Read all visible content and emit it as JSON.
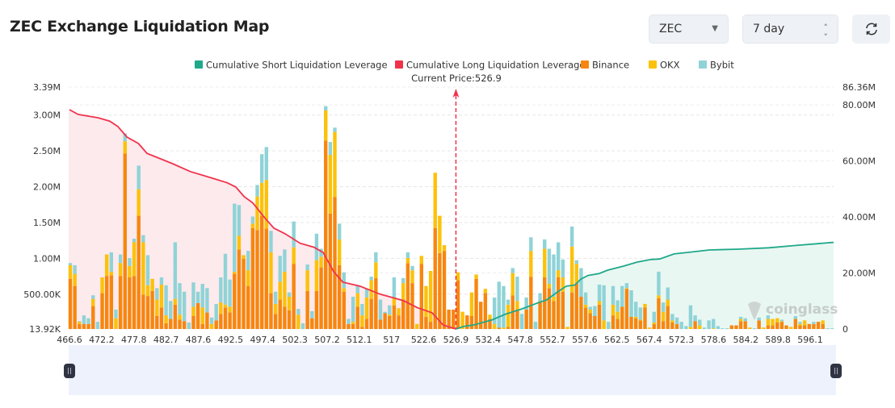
{
  "header": {
    "title": "ZEC Exchange Liquidation Map",
    "coin_select": "ZEC",
    "range_select": "7 day",
    "refresh_icon": "refresh-icon"
  },
  "watermark": "coinglass",
  "colors": {
    "short_line": "#1fa88a",
    "short_fill": "#e7f6f1",
    "long_line": "#f0334b",
    "long_fill": "#fde8eb",
    "binance": "#f7860f",
    "okx": "#fcc10a",
    "bybit": "#8fd3d7",
    "zoom_bg": "#eef2fd",
    "handle": "#2f3342"
  },
  "chart_data": {
    "type": "bar",
    "title": "",
    "legend": {
      "placement": "top",
      "items": [
        {
          "name": "Cumulative Short Liquidation Leverage",
          "color": "#1fa88a"
        },
        {
          "name": "Cumulative Long Liquidation Leverage",
          "color": "#f0334b"
        },
        {
          "name": "Binance",
          "color": "#f7860f"
        },
        {
          "name": "OKX",
          "color": "#fcc10a"
        },
        {
          "name": "Bybit",
          "color": "#8fd3d7"
        }
      ]
    },
    "current_price_label": "Current Price:526.9",
    "current_price": 526.9,
    "x_ticks": [
      "466.6",
      "472.2",
      "477.8",
      "482.7",
      "487.6",
      "492.5",
      "497.4",
      "502.3",
      "507.2",
      "512.1",
      "517",
      "522.6",
      "526.9",
      "532.4",
      "547.8",
      "552.7",
      "557.6",
      "562.5",
      "567.4",
      "572.3",
      "578.6",
      "584.2",
      "589.8",
      "596.1"
    ],
    "y_left": {
      "min": 0.01392,
      "max": 3.39,
      "ticks": [
        [
          0.01392,
          "13.92K"
        ],
        [
          0.5,
          "500.00K"
        ],
        [
          1.0,
          "1.00M"
        ],
        [
          1.5,
          "1.50M"
        ],
        [
          2.0,
          "2.00M"
        ],
        [
          2.5,
          "2.50M"
        ],
        [
          3.0,
          "3.00M"
        ],
        [
          3.39,
          "3.39M"
        ]
      ],
      "unit": "M"
    },
    "y_right": {
      "min": 0,
      "max": 86.36,
      "ticks": [
        [
          0,
          "0"
        ],
        [
          20,
          "20.00M"
        ],
        [
          40,
          "40.00M"
        ],
        [
          60,
          "60.00M"
        ],
        [
          80,
          "80.00M"
        ],
        [
          86.36,
          "86.36M"
        ]
      ],
      "unit": "M"
    },
    "grid": true,
    "stack_order": [
      "Binance",
      "OKX",
      "Bybit"
    ],
    "bars": [
      [
        0.7,
        0.19,
        0.03
      ],
      [
        0.6,
        0.17,
        0.12
      ],
      [
        0.07,
        0.03,
        0.01
      ],
      [
        0.07,
        0,
        0.12
      ],
      [
        0.07,
        0,
        0.08
      ],
      [
        0.32,
        0.1,
        0.05
      ],
      [
        0,
        0,
        0.1
      ],
      [
        0.5,
        0.22,
        0
      ],
      [
        0.74,
        0.3,
        0
      ],
      [
        0.75,
        0.05,
        0.27
      ],
      [
        0,
        0.15,
        0.12
      ],
      [
        0.74,
        0.18,
        0.12
      ],
      [
        2.45,
        0.17,
        0.11
      ],
      [
        0.72,
        0.16,
        0.11
      ],
      [
        0.74,
        0.47,
        0.05
      ],
      [
        1.58,
        0.37,
        0.33
      ],
      [
        0.48,
        0.73,
        0.1
      ],
      [
        0.46,
        0.15,
        0.42
      ],
      [
        0.53,
        0.17,
        0
      ],
      [
        0.18,
        0.23,
        0.16
      ],
      [
        0.3,
        0.32,
        0.1
      ],
      [
        0.08,
        0.11,
        0.42
      ],
      [
        0.14,
        0,
        0.25
      ],
      [
        0.34,
        0.08,
        0.79
      ],
      [
        0.13,
        0.07,
        0.44
      ],
      [
        0.11,
        0,
        0.41
      ],
      [
        0,
        0,
        0.09
      ],
      [
        0.18,
        0.13,
        0.34
      ],
      [
        0.36,
        0,
        0.16
      ],
      [
        0.07,
        0.23,
        0.33
      ],
      [
        0.23,
        0,
        0.34
      ],
      [
        0,
        0.07,
        0.09
      ],
      [
        0.12,
        0,
        0.23
      ],
      [
        0.21,
        0.16,
        0.35
      ],
      [
        0.3,
        0.04,
        0.71
      ],
      [
        0.23,
        0.08,
        0.38
      ],
      [
        0.77,
        0.03,
        0.95
      ],
      [
        1.11,
        0.19,
        0.43
      ],
      [
        0.98,
        0.05,
        0
      ],
      [
        0.6,
        0.22,
        0.27
      ],
      [
        1.41,
        0.06,
        0.1
      ],
      [
        1.38,
        0.47,
        0.16
      ],
      [
        1.58,
        0.46,
        0.4
      ],
      [
        1.4,
        0.68,
        0.46
      ],
      [
        0.5,
        0.57,
        0.3
      ],
      [
        0.21,
        0.14,
        0.17
      ],
      [
        0.41,
        0.25,
        0.36
      ],
      [
        0.31,
        0.49,
        0.31
      ],
      [
        0.26,
        0.19,
        0.06
      ],
      [
        0.91,
        0.23,
        0.36
      ],
      [
        0,
        0.2,
        0.08
      ],
      [
        0,
        0,
        0.08
      ],
      [
        0.53,
        0.29,
        0.08
      ],
      [
        0.15,
        0,
        0.1
      ],
      [
        0.53,
        0.43,
        0.37
      ],
      [
        0.86,
        0.15,
        0.11
      ],
      [
        2.63,
        0.42,
        0.06
      ],
      [
        1.61,
        0.82,
        0.18
      ],
      [
        1.84,
        0.91,
        0.06
      ],
      [
        0.89,
        0.36,
        0.22
      ],
      [
        0.52,
        0.05,
        0.22
      ],
      [
        0.07,
        0,
        0.07
      ],
      [
        0.07,
        0.03,
        0.35
      ],
      [
        0.31,
        0.19,
        0.1
      ],
      [
        0.03,
        0.16,
        0.16
      ],
      [
        0.14,
        0.3,
        0.12
      ],
      [
        0.42,
        0.26,
        0.05
      ],
      [
        0.71,
        0.22,
        0.14
      ],
      [
        0.13,
        0,
        0.28
      ],
      [
        0.22,
        0,
        0.02
      ],
      [
        0.18,
        0.02,
        0.13
      ],
      [
        0.33,
        0.11,
        0.28
      ],
      [
        0.19,
        0.1,
        0
      ],
      [
        0.41,
        0.23,
        0.07
      ],
      [
        0.92,
        0.07,
        0.08
      ],
      [
        0.64,
        0.18,
        0.06
      ],
      [
        0,
        0.07,
        0
      ],
      [
        0.91,
        0.11,
        0
      ],
      [
        0.17,
        0.43,
        0
      ],
      [
        0.1,
        0.71,
        0
      ],
      [
        1.41,
        0.77,
        0
      ],
      [
        1.06,
        0.52,
        0
      ],
      [
        1.09,
        0.08,
        0
      ],
      [
        0.27,
        0,
        0
      ],
      [
        0.27,
        0,
        0
      ],
      [
        0.68,
        0.11,
        0
      ],
      [
        0,
        0.24,
        0
      ],
      [
        0.19,
        0,
        0
      ],
      [
        0.18,
        0.33,
        0
      ],
      [
        0.7,
        0.06,
        0
      ],
      [
        0.38,
        0,
        0
      ],
      [
        0.5,
        0.06,
        0
      ],
      [
        0.14,
        0.06,
        0
      ],
      [
        0,
        0.07,
        0.37
      ],
      [
        0.02,
        0,
        0.64
      ],
      [
        0,
        0.02,
        0.58
      ],
      [
        0.03,
        0.31,
        0.07
      ],
      [
        0.47,
        0.31,
        0.07
      ],
      [
        0.27,
        0.12,
        0.34
      ],
      [
        0,
        0,
        0.21
      ],
      [
        0.27,
        0,
        0.17
      ],
      [
        0.73,
        0.36,
        0.19
      ],
      [
        0,
        0,
        0.1
      ],
      [
        0.39,
        0,
        0.11
      ],
      [
        0.72,
        0.4,
        0.13
      ],
      [
        0.57,
        0.06,
        0.49
      ],
      [
        0.39,
        0.06,
        0.59
      ],
      [
        0.72,
        0.1,
        0.39
      ],
      [
        0.52,
        0.2,
        0.25
      ],
      [
        0,
        0.03,
        0
      ],
      [
        0.51,
        0.64,
        0.28
      ],
      [
        0.64,
        0.27,
        0.05
      ],
      [
        0.45,
        0,
        0.4
      ],
      [
        0.3,
        0.04,
        0.17
      ],
      [
        0.22,
        0.05,
        0.04
      ],
      [
        0.18,
        0,
        0.14
      ],
      [
        0.34,
        0.05,
        0.23
      ],
      [
        0,
        0.12,
        0.49
      ],
      [
        0,
        0,
        0.1
      ],
      [
        0.19,
        0.15,
        0.26
      ],
      [
        0.14,
        0.1,
        0.16
      ],
      [
        0.31,
        0,
        0.29
      ],
      [
        0.56,
        0.01,
        0.07
      ],
      [
        0.17,
        0,
        0.37
      ],
      [
        0.15,
        0.02,
        0.21
      ],
      [
        0.12,
        0.01,
        0.17
      ],
      [
        0.3,
        0.05,
        0
      ],
      [
        0,
        0.02,
        0
      ],
      [
        0.07,
        0.02,
        0.15
      ],
      [
        0.43,
        0.04,
        0.33
      ],
      [
        0.11,
        0.13,
        0.13
      ],
      [
        0.32,
        0.09,
        0.17
      ],
      [
        0.09,
        0.03,
        0.09
      ],
      [
        0.07,
        0,
        0.09
      ],
      [
        0,
        0,
        0.1
      ],
      [
        0,
        0,
        0.04
      ],
      [
        0,
        0.03,
        0.3
      ],
      [
        0.11,
        0,
        0.08
      ],
      [
        0,
        0.05,
        0.08
      ],
      [
        0,
        0,
        0.02
      ],
      [
        0,
        0,
        0.12
      ],
      [
        0,
        0.01,
        0.13
      ],
      [
        0,
        0,
        0.04
      ],
      [
        0,
        0,
        0.01
      ],
      [
        0,
        0,
        0.01
      ],
      [
        0.05,
        0,
        0
      ],
      [
        0.05,
        0,
        0
      ],
      [
        0.11,
        0.03,
        0.03
      ],
      [
        0.11,
        0,
        0.04
      ],
      [
        0,
        0.02,
        0
      ],
      [
        0,
        0,
        0.01
      ],
      [
        0.12,
        0,
        0.04
      ],
      [
        0,
        0.02,
        0
      ],
      [
        0.05,
        0.09,
        0.05
      ],
      [
        0.05,
        0.09,
        0
      ],
      [
        0.09,
        0.06,
        0
      ],
      [
        0.1,
        0.01,
        0.02
      ],
      [
        0.05,
        0,
        0
      ],
      [
        0,
        0.03,
        0
      ],
      [
        0.14,
        0,
        0.04
      ],
      [
        0.05,
        0.02,
        0.03
      ],
      [
        0.05,
        0.07,
        0
      ],
      [
        0.07,
        0,
        0
      ],
      [
        0.07,
        0,
        0.03
      ],
      [
        0.1,
        0,
        0
      ],
      [
        0.07,
        0.05,
        0
      ],
      [
        0,
        0,
        0.01
      ],
      [
        0,
        0,
        0.01
      ]
    ],
    "series": [
      {
        "name": "Cumulative Long Liquidation Leverage",
        "axis": "right",
        "points": [
          [
            466.6,
            78.3
          ],
          [
            468.1,
            76.6
          ],
          [
            471.6,
            75.4
          ],
          [
            473.6,
            74.2
          ],
          [
            475.0,
            72.3
          ],
          [
            476.6,
            68.5
          ],
          [
            478.5,
            66.2
          ],
          [
            479.8,
            62.7
          ],
          [
            483.7,
            59.0
          ],
          [
            486.4,
            56.2
          ],
          [
            489.8,
            53.8
          ],
          [
            492.0,
            52.2
          ],
          [
            493.3,
            50.7
          ],
          [
            494.6,
            47.2
          ],
          [
            495.9,
            45.0
          ],
          [
            497.7,
            39.7
          ],
          [
            499.1,
            36.0
          ],
          [
            500.8,
            34.0
          ],
          [
            503.1,
            30.6
          ],
          [
            505.2,
            29.2
          ],
          [
            506.6,
            27.3
          ],
          [
            508.2,
            20.5
          ],
          [
            509.6,
            16.7
          ],
          [
            512.2,
            15.3
          ],
          [
            515.3,
            12.4
          ],
          [
            519.1,
            10.1
          ],
          [
            521.5,
            7.6
          ],
          [
            523.7,
            5.8
          ],
          [
            525.2,
            1.4
          ],
          [
            526.9,
            0
          ]
        ]
      },
      {
        "name": "Cumulative Short Liquidation Leverage",
        "axis": "right",
        "points": [
          [
            526.9,
            0
          ],
          [
            528.2,
            0.9
          ],
          [
            530.1,
            1.5
          ],
          [
            534.5,
            3.3
          ],
          [
            540.4,
            5.2
          ],
          [
            548.2,
            7.3
          ],
          [
            550.1,
            9.0
          ],
          [
            551.8,
            10.4
          ],
          [
            553.5,
            13.3
          ],
          [
            554.8,
            15.3
          ],
          [
            556.1,
            15.7
          ],
          [
            557.0,
            17.8
          ],
          [
            558.1,
            19.1
          ],
          [
            559.8,
            19.8
          ],
          [
            561.1,
            21.0
          ],
          [
            563.4,
            22.4
          ],
          [
            565.6,
            23.9
          ],
          [
            567.7,
            24.8
          ],
          [
            569.0,
            25.0
          ],
          [
            571.2,
            26.8
          ],
          [
            574.3,
            27.5
          ],
          [
            577.8,
            28.2
          ],
          [
            583.0,
            28.5
          ],
          [
            588.2,
            29.0
          ],
          [
            593.1,
            29.8
          ],
          [
            600.4,
            30.9
          ]
        ]
      }
    ]
  }
}
